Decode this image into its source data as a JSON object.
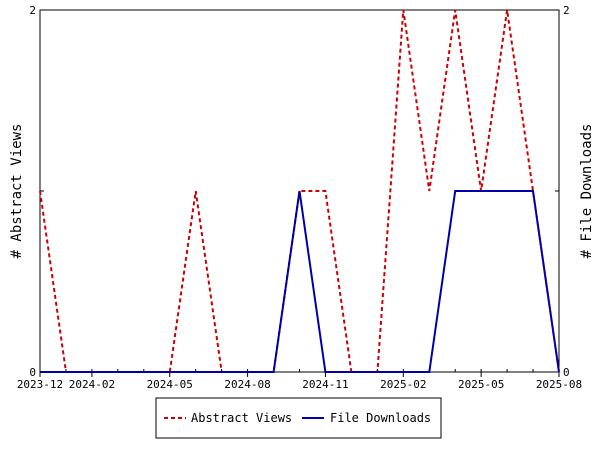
{
  "chart_data": {
    "type": "line",
    "x": [
      "2023-12",
      "2024-01",
      "2024-02",
      "2024-03",
      "2024-04",
      "2024-05",
      "2024-06",
      "2024-07",
      "2024-08",
      "2024-09",
      "2024-10",
      "2024-11",
      "2024-12",
      "2025-01",
      "2025-02",
      "2025-03",
      "2025-04",
      "2025-05",
      "2025-06",
      "2025-07",
      "2025-08"
    ],
    "series": [
      {
        "name": "Abstract Views",
        "axis": "left",
        "color": "#cc0000",
        "dash": "dashed",
        "values": [
          1,
          0,
          0,
          0,
          0,
          0,
          1,
          0,
          0,
          0,
          1,
          1,
          0,
          0,
          2,
          1,
          2,
          1,
          2,
          1,
          0
        ]
      },
      {
        "name": "File Downloads",
        "axis": "right",
        "color": "#0000aa",
        "dash": "solid",
        "values": [
          0,
          0,
          0,
          0,
          0,
          0,
          0,
          0,
          0,
          0,
          1,
          0,
          0,
          0,
          0,
          0,
          1,
          1,
          1,
          1,
          0
        ]
      }
    ],
    "xticks": [
      "2023-12",
      "2024-02",
      "2024-05",
      "2024-08",
      "2024-11",
      "2025-02",
      "2025-05",
      "2025-08"
    ],
    "xtick_index": [
      0,
      2,
      5,
      8,
      11,
      14,
      17,
      20
    ],
    "ylabel": "# Abstract Views",
    "y2label": "# File Downloads",
    "ylim": [
      0,
      2
    ],
    "y2lim": [
      0,
      2
    ],
    "yticks": [
      "0",
      "2"
    ],
    "y2ticks": [
      "0",
      "2"
    ],
    "grid": false,
    "legend_position": "bottom-center"
  }
}
